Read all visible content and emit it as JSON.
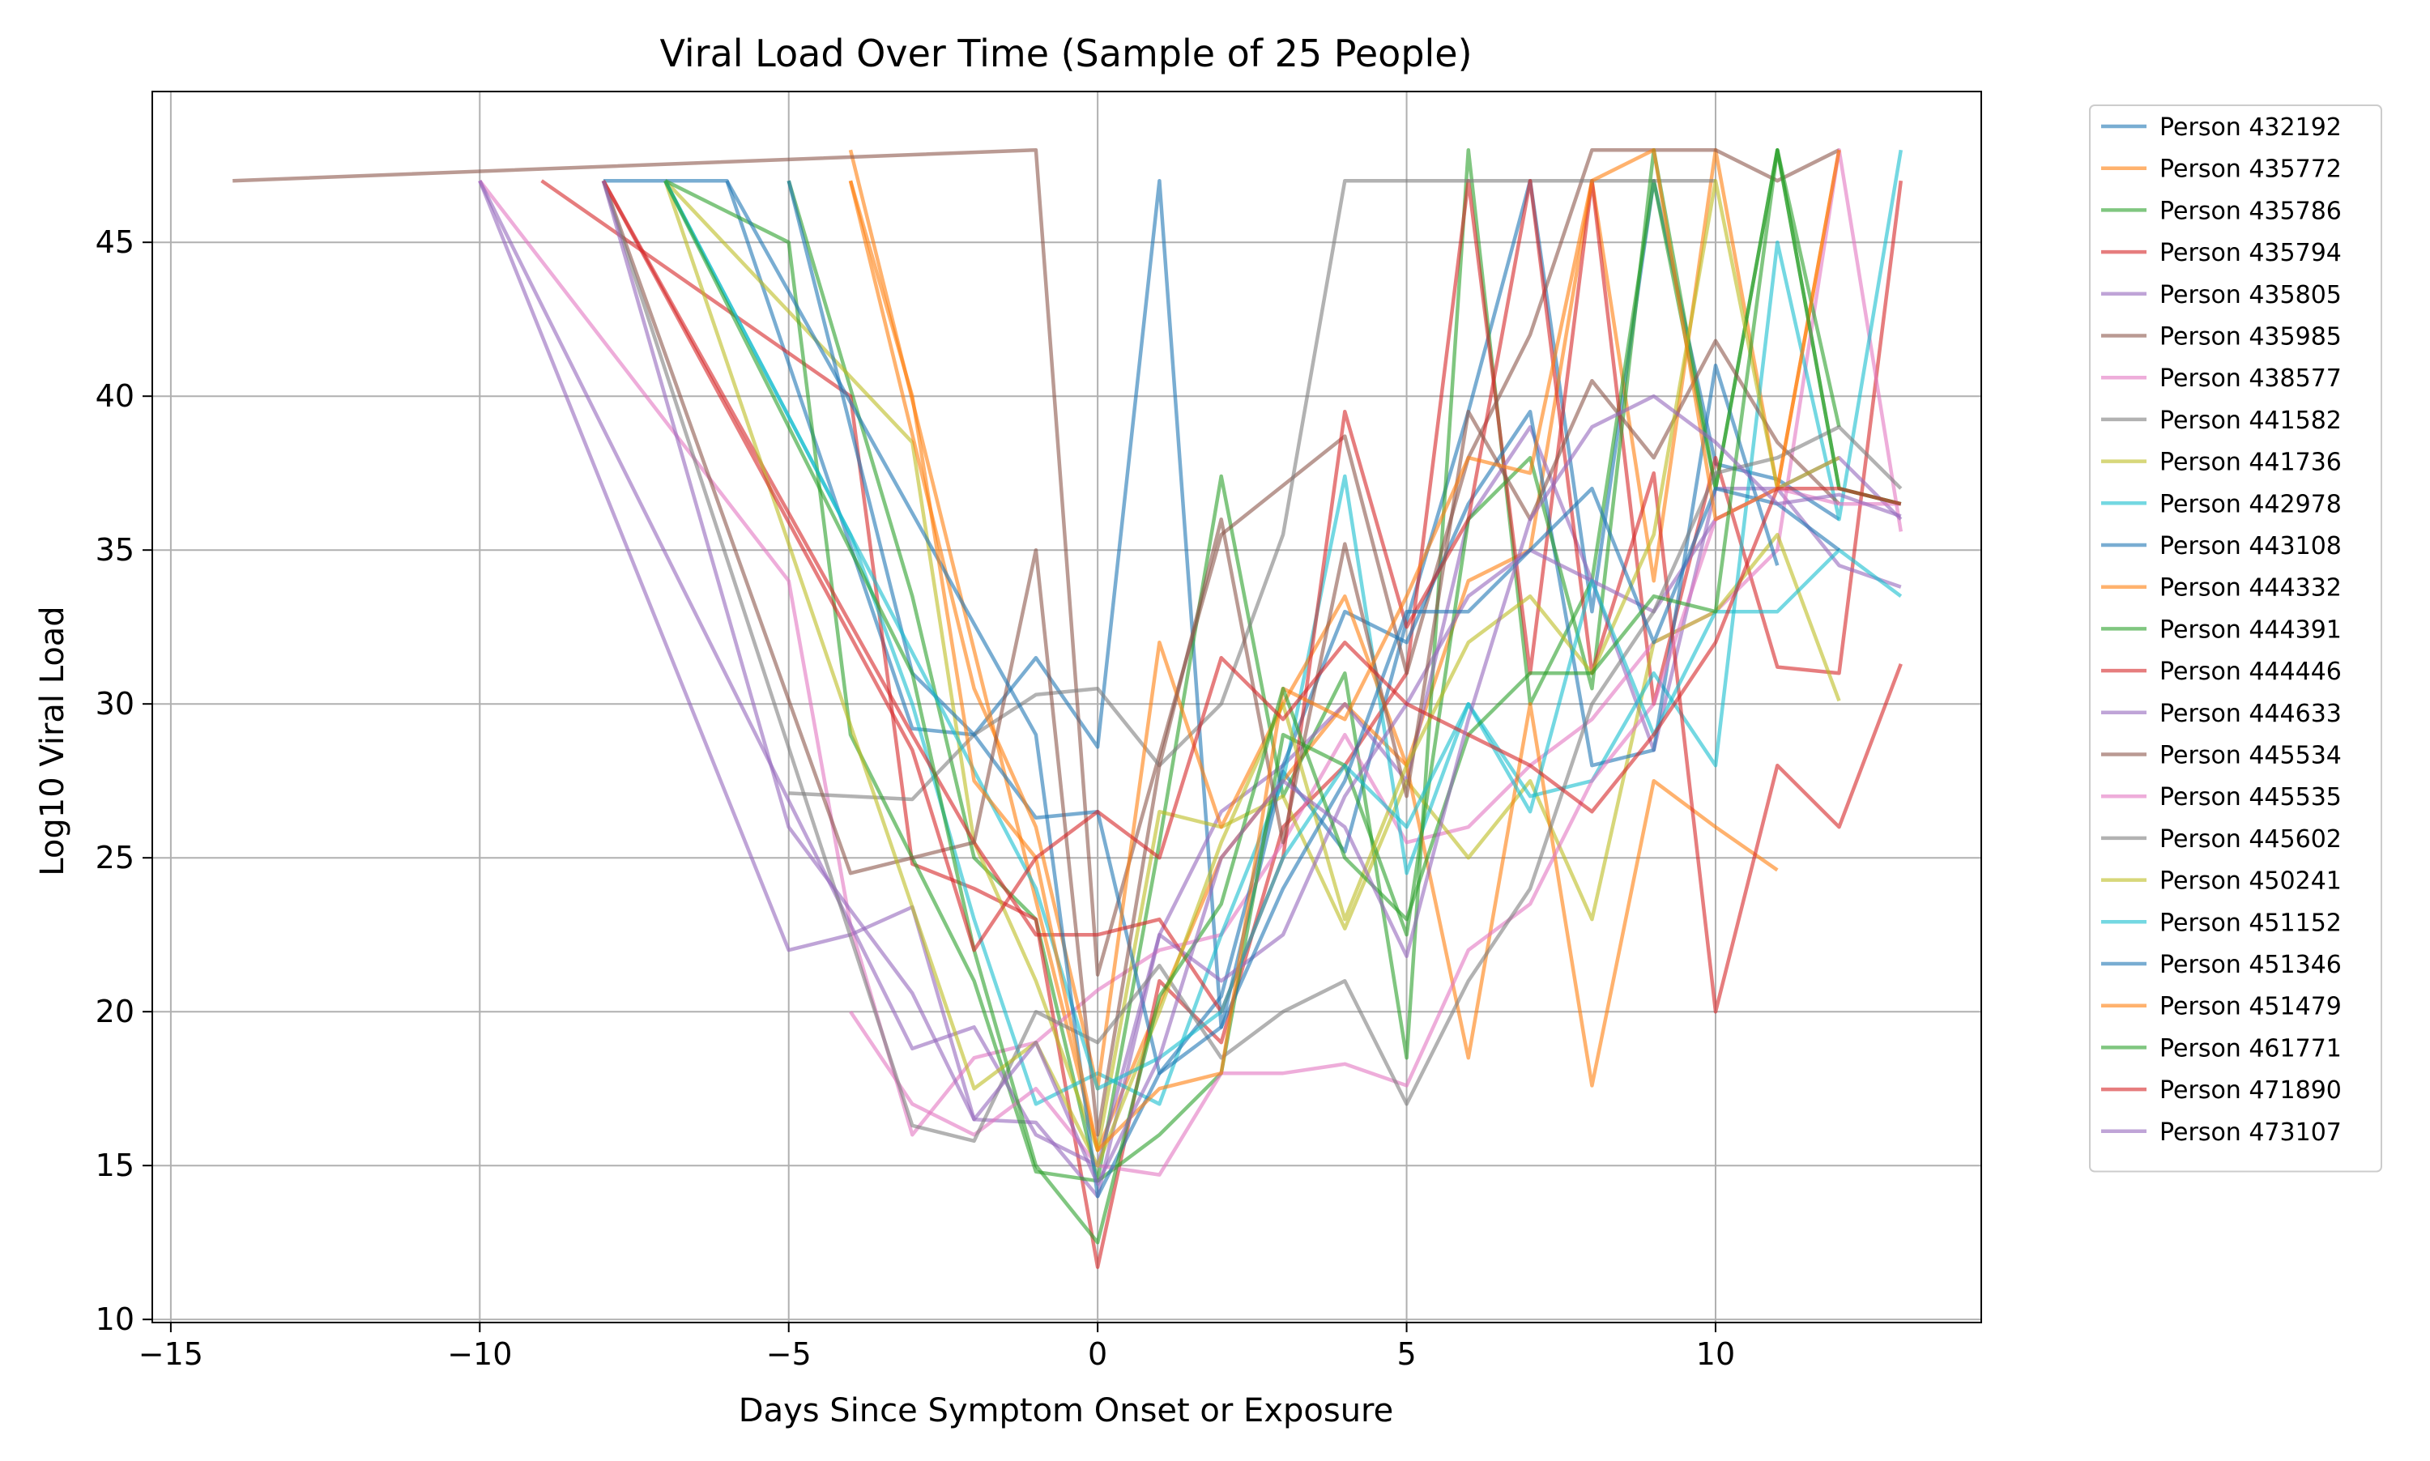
{
  "chart_data": {
    "type": "line",
    "title": "Viral Load Over Time (Sample of 25 People)",
    "xlabel": "Days Since Symptom Onset or Exposure",
    "ylabel": "Log10 Viral Load",
    "xlim": [
      -15.3,
      14.3
    ],
    "ylim": [
      9.9,
      49.9
    ],
    "x_ticks": [
      -15,
      -10,
      -5,
      0,
      5,
      10
    ],
    "x_tick_labels": [
      "−15",
      "−10",
      "−5",
      "0",
      "5",
      "10"
    ],
    "y_ticks": [
      10,
      15,
      20,
      25,
      30,
      35,
      40,
      45
    ],
    "y_tick_labels": [
      "10",
      "15",
      "20",
      "25",
      "30",
      "35",
      "40",
      "45"
    ],
    "grid": true,
    "legend_position": "outside-right",
    "palette": [
      "#1f77b4",
      "#ff7f0e",
      "#2ca02c",
      "#d62728",
      "#9467bd",
      "#8c564b",
      "#e377c2",
      "#7f7f7f",
      "#bcbd22",
      "#17becf"
    ],
    "series": [
      {
        "name": "Person 432192",
        "x": [
          -8,
          -6,
          -3,
          -2,
          -1,
          0,
          1,
          2,
          3,
          4,
          5,
          6,
          7,
          8,
          9,
          10,
          11,
          12
        ],
        "y": [
          47,
          47,
          29.2,
          29.0,
          31.5,
          28.6,
          47,
          19.5,
          27.8,
          25.2,
          32.7,
          39.5,
          47,
          33.0,
          47,
          37.8,
          37.3,
          36.0
        ]
      },
      {
        "name": "Person 435772",
        "x": [
          -4,
          0,
          2,
          4,
          5,
          6,
          7,
          8,
          9,
          10,
          11,
          12
        ],
        "y": [
          48,
          15.5,
          25.0,
          30.0,
          28.0,
          34.0,
          35.0,
          47,
          34.0,
          48,
          37.0,
          48
        ]
      },
      {
        "name": "Person 435786",
        "x": [
          -5,
          -3,
          -2,
          -1,
          0,
          1,
          2,
          3,
          4,
          5,
          6,
          7,
          8,
          9,
          10,
          11,
          12,
          13
        ],
        "y": [
          47,
          33.5,
          25.0,
          23.0,
          14.5,
          25.5,
          37.4,
          27.0,
          31.0,
          18.5,
          48,
          30.0,
          34.0,
          47,
          37.0,
          48,
          37.0,
          36.5
        ]
      },
      {
        "name": "Person 435794",
        "x": [
          -9,
          -4,
          -3,
          -2,
          -1,
          0,
          1,
          2,
          3,
          4,
          5,
          6,
          7,
          8,
          9,
          10,
          11,
          12,
          13
        ],
        "y": [
          47,
          40.0,
          24.8,
          24.0,
          23.0,
          11.7,
          21.0,
          19.0,
          26.0,
          28.0,
          31.0,
          47,
          31.0,
          47,
          30.0,
          38.0,
          31.2,
          31.0,
          47
        ]
      },
      {
        "name": "Person 435805",
        "x": [
          -10,
          -5,
          -4,
          -3,
          -2,
          -1,
          0,
          1,
          2,
          3,
          4,
          5,
          6,
          7,
          8,
          9,
          10,
          11,
          12,
          13
        ],
        "y": [
          47,
          22.0,
          22.5,
          23.4,
          16.5,
          16.4,
          14.0,
          22.5,
          26.5,
          28.0,
          30.0,
          27.5,
          36.0,
          39.0,
          34.0,
          28.5,
          37.0,
          37.0,
          34.5,
          33.8
        ]
      },
      {
        "name": "Person 435985",
        "x": [
          -14,
          -1,
          0,
          2,
          4,
          5,
          6,
          7,
          8,
          9,
          10,
          11,
          12
        ],
        "y": [
          47,
          48,
          21.2,
          35.5,
          38.7,
          31.0,
          38.0,
          42.0,
          48,
          48,
          48,
          47,
          48
        ]
      },
      {
        "name": "Person 438577",
        "x": [
          -10,
          -5,
          -4,
          -3,
          -2,
          -1,
          0,
          1,
          2,
          3,
          4,
          5,
          6,
          7,
          8,
          9,
          10,
          11,
          12,
          13
        ],
        "y": [
          47,
          34.0,
          22.8,
          16.0,
          18.5,
          19.0,
          20.7,
          22.0,
          22.5,
          25.5,
          29.0,
          25.5,
          26.0,
          28.0,
          29.5,
          32.0,
          33.0,
          35.0,
          48,
          35.6
        ]
      },
      {
        "name": "Person 441582",
        "x": [
          -5,
          -3,
          -2,
          -1,
          0,
          1,
          2,
          3,
          4,
          5,
          6,
          7,
          8,
          9,
          10
        ],
        "y": [
          27.1,
          26.9,
          29.0,
          30.3,
          30.5,
          28.0,
          30.0,
          35.5,
          47,
          47,
          47,
          47,
          47,
          47,
          47
        ]
      },
      {
        "name": "Person 441736",
        "x": [
          -7,
          -3,
          -2,
          -1,
          0,
          1,
          2,
          3,
          4,
          5,
          6,
          7,
          8,
          9,
          10,
          11,
          12
        ],
        "y": [
          47,
          38.5,
          25.5,
          21.0,
          15.5,
          26.5,
          26.0,
          27.0,
          22.7,
          27.5,
          25.0,
          27.5,
          23.0,
          32.0,
          33.0,
          35.5,
          30.1
        ]
      },
      {
        "name": "Person 442978",
        "x": [
          -7,
          -4,
          -3,
          -2,
          -1,
          0,
          1,
          2,
          3,
          4,
          5,
          6,
          7,
          8,
          9,
          10,
          11,
          12,
          13
        ],
        "y": [
          47,
          35.5,
          30.0,
          23.0,
          17.0,
          18.0,
          17.0,
          22.5,
          27.5,
          37.4,
          24.5,
          30.0,
          27.0,
          27.5,
          31.0,
          28.0,
          45.0,
          36.0,
          48
        ]
      },
      {
        "name": "Person 443108",
        "x": [
          -5,
          -3,
          -2,
          -1,
          0,
          1,
          2,
          3,
          4,
          5,
          6,
          7,
          8,
          9,
          10,
          11
        ],
        "y": [
          47,
          31.0,
          29.0,
          26.3,
          26.5,
          18.0,
          20.5,
          28.0,
          33.0,
          32.0,
          36.5,
          39.5,
          28.0,
          28.5,
          41.0,
          34.5
        ]
      },
      {
        "name": "Person 444332",
        "x": [
          -4,
          -2,
          -1,
          0,
          1,
          2,
          3,
          4,
          5,
          6,
          7,
          8,
          9,
          10,
          11
        ],
        "y": [
          47,
          30.5,
          26.0,
          17.5,
          32.0,
          26.0,
          30.0,
          33.5,
          28.0,
          18.5,
          30.0,
          17.6,
          27.5,
          26.0,
          24.6
        ]
      },
      {
        "name": "Person 444391",
        "x": [
          -7,
          -5,
          -4,
          -2,
          -1,
          0,
          1,
          2,
          3,
          4,
          5,
          6,
          7,
          8,
          9,
          10,
          11,
          12
        ],
        "y": [
          47,
          45.0,
          29.0,
          21.0,
          14.8,
          14.5,
          16.0,
          18.0,
          29.0,
          28.0,
          22.5,
          36.0,
          38.0,
          30.5,
          48,
          37.0,
          48,
          39.0
        ]
      },
      {
        "name": "Person 444446",
        "x": [
          -8,
          -3,
          -2,
          -1,
          0,
          1,
          2,
          3,
          4,
          5,
          6,
          7,
          8,
          9,
          10,
          11,
          12,
          13
        ],
        "y": [
          47,
          29.0,
          25.5,
          22.5,
          22.5,
          23.0,
          20.0,
          25.0,
          39.5,
          32.5,
          36.0,
          47,
          31.0,
          37.5,
          20.0,
          28.0,
          26.0,
          31.3
        ]
      },
      {
        "name": "Person 444633",
        "x": [
          -10,
          -3,
          -2,
          -1,
          0,
          1,
          2,
          3,
          4,
          5,
          6,
          7,
          8,
          9,
          10,
          11,
          12,
          13
        ],
        "y": [
          47,
          18.8,
          19.5,
          16.0,
          15.0,
          22.5,
          21.0,
          22.5,
          27.0,
          30.0,
          33.5,
          35.0,
          34.0,
          33.0,
          36.0,
          37.0,
          38.0,
          36.0
        ]
      },
      {
        "name": "Person 445534",
        "x": [
          -8,
          -4,
          -2,
          -1,
          0,
          1,
          2,
          3,
          4,
          5,
          6,
          7,
          8,
          9,
          10,
          11,
          12
        ],
        "y": [
          47,
          24.5,
          25.5,
          35.0,
          16.0,
          28.0,
          36.0,
          25.5,
          35.2,
          27.0,
          39.5,
          36.0,
          40.5,
          38.0,
          41.8,
          38.5,
          36.5
        ]
      },
      {
        "name": "Person 445535",
        "x": [
          -4,
          -3,
          -2,
          -1,
          0,
          1,
          2,
          3,
          4,
          5,
          6,
          7,
          8,
          9,
          10,
          11,
          12,
          13
        ],
        "y": [
          20.0,
          17.0,
          16.0,
          17.5,
          15.0,
          14.7,
          18.0,
          18.0,
          18.3,
          17.6,
          22.0,
          23.5,
          27.5,
          30.0,
          36.0,
          37.0,
          36.5,
          36.5
        ]
      },
      {
        "name": "Person 445602",
        "x": [
          -8,
          -3,
          -2,
          -1,
          0,
          1,
          2,
          3,
          4,
          5,
          6,
          7,
          8,
          9,
          10,
          11,
          12,
          13
        ],
        "y": [
          47,
          16.3,
          15.8,
          20.0,
          19.0,
          21.5,
          18.5,
          20.0,
          21.0,
          17.0,
          21.0,
          24.0,
          30.0,
          33.0,
          37.5,
          38.0,
          39.0,
          37.0
        ]
      },
      {
        "name": "Person 450241",
        "x": [
          -7,
          -2,
          -1,
          0,
          1,
          2,
          3,
          4,
          5,
          6,
          7,
          8,
          9,
          10,
          11,
          12
        ],
        "y": [
          47,
          17.5,
          19.0,
          15.0,
          20.0,
          25.5,
          30.0,
          23.0,
          28.0,
          32.0,
          33.5,
          31.0,
          35.5,
          47,
          37.0,
          38.0
        ]
      },
      {
        "name": "Person 451152",
        "x": [
          -7,
          -1,
          0,
          1,
          2,
          3,
          4,
          5,
          6,
          7,
          8,
          9,
          10,
          11,
          12,
          13
        ],
        "y": [
          47,
          24.0,
          17.5,
          18.5,
          20.0,
          25.0,
          28.0,
          26.0,
          30.0,
          26.5,
          34.0,
          29.0,
          33.0,
          33.0,
          35.0,
          33.5
        ]
      },
      {
        "name": "Person 451346",
        "x": [
          -6,
          -1,
          0,
          1,
          2,
          3,
          4,
          5,
          6,
          7,
          8,
          9,
          10,
          11,
          12
        ],
        "y": [
          47,
          29.0,
          14.0,
          18.0,
          19.5,
          24.0,
          27.5,
          33.0,
          33.0,
          35.0,
          37.0,
          32.0,
          37.0,
          36.5,
          35.0
        ]
      },
      {
        "name": "Person 451479",
        "x": [
          -4,
          -3,
          -2,
          -1,
          0,
          1,
          2,
          3,
          4,
          5,
          6,
          7,
          8,
          9,
          10,
          11,
          12
        ],
        "y": [
          47,
          40.0,
          27.5,
          25.0,
          15.5,
          17.5,
          18.0,
          30.5,
          29.5,
          33.5,
          38.0,
          37.5,
          47,
          48,
          36.0,
          37.0,
          48
        ]
      },
      {
        "name": "Person 461771",
        "x": [
          -7,
          -3,
          -2,
          -1,
          0,
          1,
          2,
          3,
          4,
          5,
          6,
          7,
          8,
          9,
          10,
          11,
          12,
          13
        ],
        "y": [
          47,
          31.0,
          22.0,
          15.0,
          12.5,
          20.5,
          23.5,
          30.5,
          25.0,
          23.0,
          29.0,
          31.0,
          31.0,
          33.5,
          33.0,
          48,
          37.0,
          36.5
        ]
      },
      {
        "name": "Person 471890",
        "x": [
          -8,
          -3,
          -2,
          -1,
          0,
          1,
          2,
          3,
          4,
          5,
          6,
          7,
          8,
          9,
          10,
          11,
          12,
          13
        ],
        "y": [
          47,
          28.5,
          22.0,
          25.0,
          26.5,
          25.0,
          31.5,
          29.5,
          32.0,
          30.0,
          29.0,
          28.0,
          26.5,
          29.0,
          32.0,
          37.0,
          37.0,
          36.5
        ]
      },
      {
        "name": "Person 473107",
        "x": [
          -8,
          -5,
          -3,
          -2,
          -1,
          0,
          1,
          2,
          3,
          4,
          5,
          6,
          7,
          8,
          9,
          10,
          11,
          12,
          13
        ],
        "y": [
          47,
          26.0,
          20.6,
          16.5,
          19.0,
          14.4,
          18.5,
          25.0,
          27.5,
          26.0,
          21.8,
          29.5,
          36.0,
          39.0,
          40.0,
          38.5,
          36.5,
          36.8,
          36.1
        ]
      }
    ]
  }
}
